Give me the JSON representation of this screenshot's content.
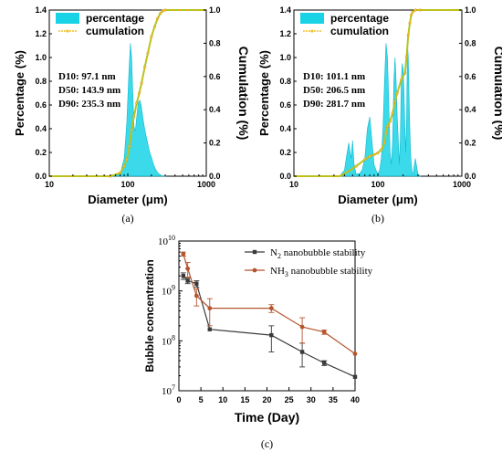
{
  "chart_data": [
    {
      "id": "a",
      "type": "area",
      "caption": "(a)",
      "xlabel": "Diameter (μm)",
      "ylabel": "Percentage (%)",
      "y2label": "Cumulation (%)",
      "xscale": "log",
      "xlim": [
        10,
        1000
      ],
      "xticks": [
        "10",
        "100",
        "1000"
      ],
      "ylim": [
        0,
        1.4
      ],
      "yticks": [
        "0.0",
        "0.2",
        "0.4",
        "0.6",
        "0.8",
        "1.0",
        "1.2",
        "1.4"
      ],
      "y2lim": [
        0,
        1.0
      ],
      "y2ticks": [
        "0.0",
        "0.2",
        "0.4",
        "0.6",
        "0.8",
        "1.0"
      ],
      "legend": [
        "percentage",
        "cumulation"
      ],
      "legend_position": "top-left",
      "stats": [
        "D10: 97.1 nm",
        "D50: 143.9 nm",
        "D90: 235.3 nm"
      ],
      "series": [
        {
          "name": "percentage",
          "color": "#18d3e6",
          "x": [
            60,
            80,
            90,
            97,
            103,
            108,
            112,
            116,
            120,
            125,
            130,
            136,
            142,
            148,
            155,
            162,
            170,
            180,
            190,
            200,
            212,
            225,
            240,
            260,
            285,
            310
          ],
          "y": [
            0,
            0.02,
            0.15,
            0.45,
            0.85,
            1.12,
            1.0,
            0.7,
            0.42,
            0.38,
            0.5,
            0.62,
            0.64,
            0.6,
            0.5,
            0.42,
            0.35,
            0.27,
            0.2,
            0.16,
            0.1,
            0.06,
            0.03,
            0.01,
            0,
            0
          ]
        },
        {
          "name": "cumulation",
          "color": "#f0b000",
          "x": [
            10,
            60,
            80,
            90,
            97,
            105,
            112,
            120,
            130,
            140,
            150,
            165,
            180,
            200,
            220,
            240,
            260,
            280,
            300,
            400,
            1000
          ],
          "y": [
            0,
            0,
            0.02,
            0.06,
            0.1,
            0.18,
            0.28,
            0.36,
            0.44,
            0.5,
            0.56,
            0.66,
            0.74,
            0.84,
            0.9,
            0.95,
            0.98,
            0.995,
            1.0,
            1.0,
            1.0
          ]
        }
      ]
    },
    {
      "id": "b",
      "type": "area",
      "caption": "(b)",
      "xlabel": "Diameter (μm)",
      "ylabel": "Percentage (%)",
      "y2label": "Cumulation (%)",
      "xscale": "log",
      "xlim": [
        10,
        1000
      ],
      "xticks": [
        "10",
        "100",
        "1000"
      ],
      "ylim": [
        0,
        1.4
      ],
      "yticks": [
        "0.0",
        "0.2",
        "0.4",
        "0.6",
        "0.8",
        "1.0",
        "1.2",
        "1.4"
      ],
      "y2lim": [
        0,
        1.0
      ],
      "y2ticks": [
        "0.0",
        "0.2",
        "0.4",
        "0.6",
        "0.8",
        "1.0"
      ],
      "legend": [
        "percentage",
        "cumulation"
      ],
      "legend_position": "top-left",
      "stats": [
        "D10: 101.1 nm",
        "D50: 206.5 nm",
        "D90: 281.7 nm"
      ],
      "series": [
        {
          "name": "percentage",
          "color": "#18d3e6",
          "x": [
            35,
            40,
            42,
            45,
            48,
            50,
            52,
            55,
            60,
            65,
            70,
            75,
            80,
            85,
            90,
            95,
            100,
            105,
            110,
            115,
            120,
            125,
            130,
            135,
            140,
            145,
            150,
            155,
            160,
            165,
            170,
            175,
            180,
            185,
            190,
            195,
            200,
            205,
            210,
            215,
            220,
            225,
            230,
            235,
            240,
            245,
            250,
            255,
            260,
            265,
            270,
            280,
            290,
            300,
            320
          ],
          "y": [
            0,
            0.05,
            0.15,
            0.28,
            0.15,
            0.3,
            0.1,
            0.02,
            0.02,
            0.05,
            0.15,
            0.4,
            0.5,
            0.3,
            0.1,
            0.05,
            0.02,
            0.05,
            0.15,
            0.4,
            0.8,
            1.12,
            1.0,
            0.6,
            0.2,
            0.1,
            0.3,
            0.8,
            1.0,
            0.8,
            0.5,
            0.3,
            0.1,
            0.3,
            0.8,
            0.95,
            0.9,
            0.7,
            0.4,
            0.2,
            0.5,
            1.12,
            1.0,
            0.7,
            0.4,
            0.2,
            0.1,
            0.05,
            0.02,
            0.02,
            0.08,
            0.15,
            0.08,
            0.02,
            0
          ]
        },
        {
          "name": "cumulation",
          "color": "#f0b000",
          "x": [
            10,
            35,
            45,
            55,
            70,
            80,
            90,
            100,
            110,
            120,
            125,
            130,
            140,
            150,
            160,
            170,
            190,
            210,
            220,
            230,
            240,
            250,
            260,
            280,
            320,
            1000
          ],
          "y": [
            0,
            0,
            0.03,
            0.06,
            0.1,
            0.12,
            0.13,
            0.14,
            0.16,
            0.2,
            0.26,
            0.3,
            0.33,
            0.38,
            0.45,
            0.5,
            0.58,
            0.62,
            0.72,
            0.85,
            0.92,
            0.97,
            0.99,
            1.0,
            1.0,
            1.0
          ]
        }
      ]
    },
    {
      "id": "c",
      "type": "line",
      "caption": "(c)",
      "xlabel": "Time (Day)",
      "ylabel": "Bubble concentration",
      "yscale": "log",
      "xlim": [
        0,
        40
      ],
      "xticks": [
        "0",
        "5",
        "10",
        "15",
        "20",
        "25",
        "30",
        "35",
        "40"
      ],
      "ylim": [
        10000000,
        10000000000
      ],
      "yticks": [
        {
          "base": "10",
          "exp": "7"
        },
        {
          "base": "10",
          "exp": "8"
        },
        {
          "base": "10",
          "exp": "9"
        },
        {
          "base": "10",
          "exp": "10"
        }
      ],
      "legend_position": "top-right",
      "series": [
        {
          "name_main": "N",
          "name_sub": "2",
          "name_rest": " nanobubble stability",
          "color": "#3a3a3a",
          "marker": "square",
          "x": [
            1,
            2,
            4,
            7,
            21,
            28,
            33,
            40
          ],
          "y": [
            2000000000,
            1600000000,
            1400000000,
            170000000,
            130000000,
            60000000,
            36000000,
            19000000
          ],
          "err": [
            300000000,
            200000000,
            200000000,
            0,
            70000000,
            30000000,
            4000000,
            0
          ]
        },
        {
          "name_main": "NH",
          "name_sub": "3",
          "name_rest": " nanobubble stability",
          "color": "#b5552e",
          "marker": "circle",
          "x": [
            1,
            2,
            4,
            7,
            21,
            28,
            33,
            40
          ],
          "y": [
            5500000000,
            2800000000,
            800000000,
            450000000,
            450000000,
            190000000,
            150000000,
            55000000
          ],
          "err": [
            500000000,
            900000000,
            300000000,
            250000000,
            80000000,
            100000000,
            15000000,
            0
          ]
        }
      ]
    }
  ]
}
